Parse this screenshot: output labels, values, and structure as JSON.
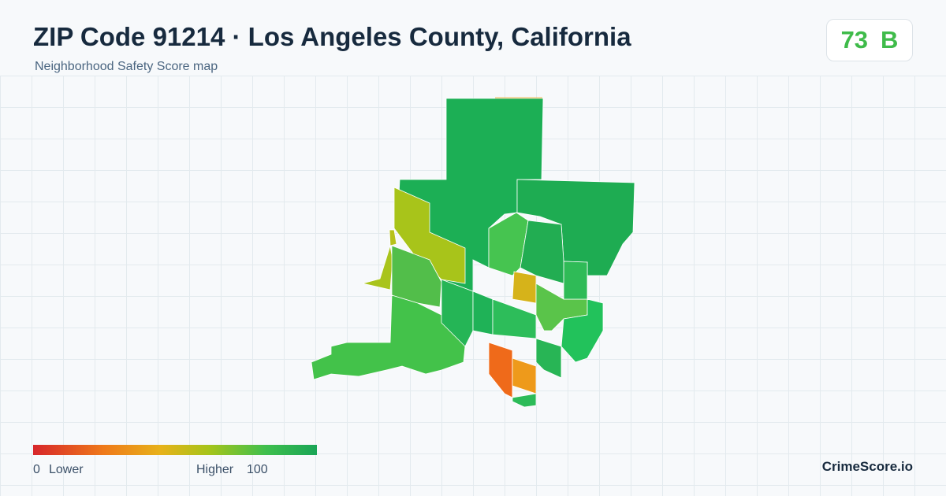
{
  "header": {
    "title": "ZIP Code 91214 · Los Angeles County, California",
    "subtitle": "Neighborhood Safety Score map"
  },
  "badge": {
    "score": 73,
    "grade": "B"
  },
  "legend": {
    "min": 0,
    "min_label": "Lower",
    "max_label": "Higher",
    "max": 100
  },
  "brand": "CrimeScore.io"
}
